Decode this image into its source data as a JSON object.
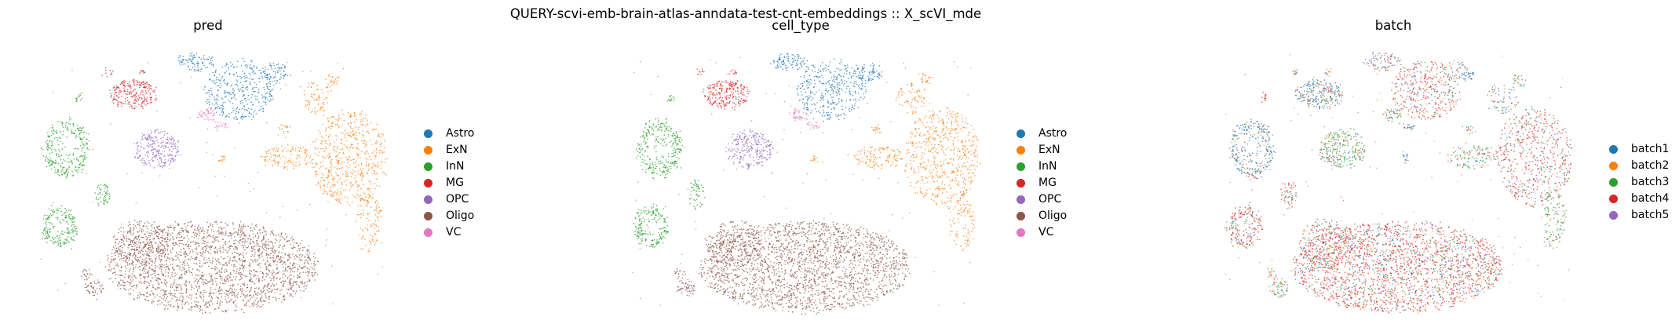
{
  "suptitle": "QUERY-scvi-emb-brain-atlas-anndata-test-cnt-embeddings :: X_scVI_mde",
  "colors": {
    "Astro": "#1f77b4",
    "ExN": "#ff7f0e",
    "InN": "#2ca02c",
    "MG": "#d62728",
    "OPC": "#9467bd",
    "Oligo": "#8c564b",
    "VC": "#e377c2",
    "batch1": "#1f77b4",
    "batch2": "#ff7f0e",
    "batch3": "#2ca02c",
    "batch4": "#d62728",
    "batch5": "#9467bd"
  },
  "chart_data": [
    {
      "type": "scatter",
      "title": "pred",
      "xlabel": "",
      "ylabel": "",
      "grid": false,
      "legend": "right",
      "legend_entries": [
        "Astro",
        "ExN",
        "InN",
        "MG",
        "OPC",
        "Oligo",
        "VC"
      ],
      "mode": "celltype"
    },
    {
      "type": "scatter",
      "title": "cell_type",
      "xlabel": "",
      "ylabel": "",
      "grid": false,
      "legend": "right",
      "legend_entries": [
        "Astro",
        "ExN",
        "InN",
        "MG",
        "OPC",
        "Oligo",
        "VC"
      ],
      "mode": "celltype"
    },
    {
      "type": "scatter",
      "title": "batch",
      "xlabel": "",
      "ylabel": "",
      "grid": false,
      "legend": "right",
      "legend_entries": [
        "batch1",
        "batch2",
        "batch3",
        "batch4",
        "batch5"
      ],
      "mode": "batch"
    }
  ]
}
